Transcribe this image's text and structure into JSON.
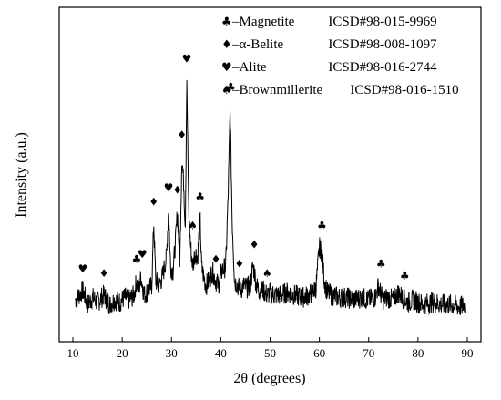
{
  "chart_data": {
    "type": "line",
    "xlabel": "2θ (degrees)",
    "ylabel": "Intensity (a.u.)",
    "xlim": [
      10,
      90
    ],
    "xticks": [
      "10",
      "20",
      "30",
      "40",
      "50",
      "60",
      "70",
      "80",
      "90"
    ],
    "yticks_labeled": false,
    "grid": false,
    "legend_position": "top-right",
    "legend": [
      {
        "symbol": "♣",
        "label": "–Magnetite",
        "code": "ICSD#98-015-9969"
      },
      {
        "symbol": "♦",
        "label": "–α-Belite",
        "code": "ICSD#98-008-1097"
      },
      {
        "symbol": "♥",
        "label": "–Alite",
        "code": "ICSD#98-016-2744"
      },
      {
        "symbol": "♠",
        "label": "–Brownmillerite",
        "code": "ICSD#98-016-1510"
      }
    ],
    "series": [
      {
        "x": [
          10.5,
          12.0,
          13.0,
          14.0,
          15.0,
          16.3,
          17.5,
          18.5,
          19.5,
          20.5,
          21.5,
          22.4,
          22.9,
          23.4,
          23.8,
          24.1,
          24.5,
          25.3,
          26.0,
          26.4,
          26.8,
          27.5,
          28.2,
          29.0,
          29.4,
          29.8,
          30.3,
          30.8,
          31.2,
          31.7,
          32.1,
          32.5,
          32.8,
          33.1,
          33.5,
          33.9,
          34.3,
          34.8,
          35.3,
          35.8,
          36.1,
          36.5,
          37.0,
          37.6,
          38.3,
          39.0,
          39.5,
          40.2,
          41.0,
          41.5,
          41.9,
          42.3,
          42.8,
          43.4,
          44.0,
          44.6,
          45.3,
          46.0,
          46.5,
          46.8,
          47.2,
          47.8,
          48.6,
          49.4,
          50.0,
          51.0,
          52.0,
          53.5,
          55.0,
          56.5,
          58.0,
          59.3,
          60.0,
          60.5,
          61.0,
          61.6,
          62.5,
          64.0,
          65.5,
          67.0,
          68.5,
          70.0,
          71.3,
          72.0,
          72.5,
          73.0,
          73.7,
          75.0,
          76.0,
          76.8,
          77.3,
          78.0,
          79.0,
          81.0,
          83.0,
          85.0,
          87.0,
          88.5,
          89.8
        ],
        "y": [
          8,
          12,
          6,
          9,
          7,
          10,
          6,
          8,
          7,
          9,
          8,
          10,
          16,
          12,
          18,
          14,
          10,
          12,
          14,
          40,
          16,
          14,
          18,
          26,
          46,
          22,
          20,
          32,
          45,
          24,
          68,
          56,
          38,
          100,
          44,
          30,
          22,
          28,
          26,
          42,
          22,
          18,
          14,
          16,
          20,
          16,
          14,
          20,
          22,
          52,
          88,
          42,
          16,
          14,
          12,
          14,
          13,
          14,
          22,
          20,
          14,
          12,
          12,
          10,
          11,
          10,
          10,
          11,
          10,
          9,
          10,
          13,
          30,
          28,
          16,
          11,
          10,
          9,
          9,
          8,
          9,
          8,
          9,
          14,
          10,
          8,
          9,
          8,
          11,
          9,
          8,
          7,
          8,
          6,
          7,
          6,
          6,
          5,
          6
        ]
      }
    ],
    "peak_markers": [
      {
        "symbol": "♥",
        "x": 12.0
      },
      {
        "symbol": "♦",
        "x": 16.3
      },
      {
        "symbol": "♣",
        "x": 22.9
      },
      {
        "symbol": "♥",
        "x": 24.1
      },
      {
        "symbol": "♦",
        "x": 26.4
      },
      {
        "symbol": "♥",
        "x": 29.4
      },
      {
        "symbol": "♦",
        "x": 31.2
      },
      {
        "symbol": "♦",
        "x": 32.1
      },
      {
        "symbol": "♥",
        "x": 33.1
      },
      {
        "symbol": "♠",
        "x": 34.3
      },
      {
        "symbol": "♣",
        "x": 35.8
      },
      {
        "symbol": "♦",
        "x": 39.0
      },
      {
        "symbol": "♣",
        "x": 42.0
      },
      {
        "symbol": "♦",
        "x": 43.8
      },
      {
        "symbol": "♦",
        "x": 46.8
      },
      {
        "symbol": "♠",
        "x": 49.4
      },
      {
        "symbol": "♣",
        "x": 60.5
      },
      {
        "symbol": "♣",
        "x": 72.5
      },
      {
        "symbol": "♣",
        "x": 77.3
      }
    ]
  }
}
